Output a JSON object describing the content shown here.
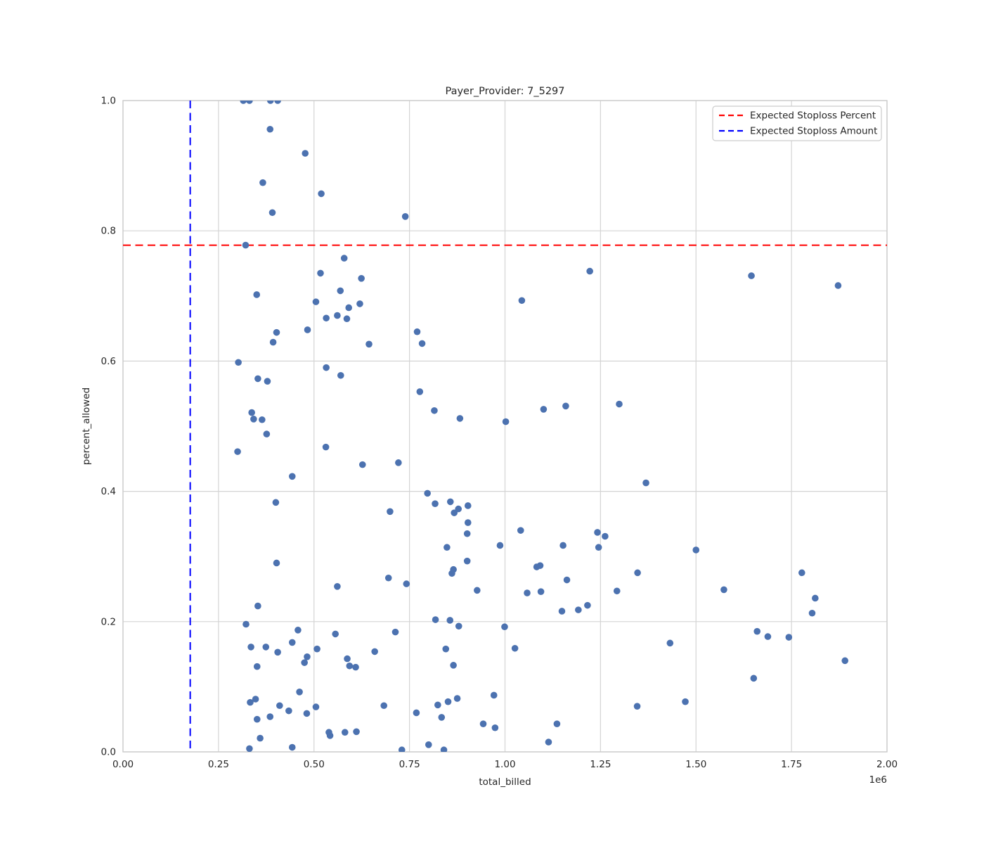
{
  "title": "Payer_Provider: 7_5297",
  "chart_data": {
    "type": "scatter",
    "title": "Payer_Provider: 7_5297",
    "xlabel": "total_billed",
    "ylabel": "percent_allowed",
    "x_offset_label": "1e6",
    "xlim": [
      0,
      2000000
    ],
    "ylim": [
      0.0,
      1.0
    ],
    "grid": true,
    "x_ticks": [
      {
        "value": 0,
        "label": "0.00"
      },
      {
        "value": 250000,
        "label": "0.25"
      },
      {
        "value": 500000,
        "label": "0.50"
      },
      {
        "value": 750000,
        "label": "0.75"
      },
      {
        "value": 1000000,
        "label": "1.00"
      },
      {
        "value": 1250000,
        "label": "1.25"
      },
      {
        "value": 1500000,
        "label": "1.50"
      },
      {
        "value": 1750000,
        "label": "1.75"
      },
      {
        "value": 2000000,
        "label": "2.00"
      }
    ],
    "y_ticks": [
      {
        "value": 0.0,
        "label": "0.0"
      },
      {
        "value": 0.2,
        "label": "0.2"
      },
      {
        "value": 0.4,
        "label": "0.4"
      },
      {
        "value": 0.6,
        "label": "0.6"
      },
      {
        "value": 0.8,
        "label": "0.8"
      },
      {
        "value": 1.0,
        "label": "1.0"
      }
    ],
    "reference_lines": [
      {
        "name": "Expected Stoploss Percent",
        "orientation": "horizontal",
        "value": 0.778,
        "color": "#ff0000",
        "style": "dashed"
      },
      {
        "name": "Expected Stoploss Amount",
        "orientation": "vertical",
        "value": 176000,
        "color": "#0000ff",
        "style": "dashed"
      }
    ],
    "legend": {
      "position": "upper right",
      "entries": [
        {
          "label": "Expected Stoploss Percent",
          "color": "#ff0000",
          "style": "dashed"
        },
        {
          "label": "Expected Stoploss Amount",
          "color": "#0000ff",
          "style": "dashed"
        }
      ]
    },
    "series": [
      {
        "name": "claims",
        "color": "#4C72B0",
        "points": [
          [
            315000,
            1.0
          ],
          [
            331000,
            1.0
          ],
          [
            386000,
            1.0
          ],
          [
            405000,
            1.0
          ],
          [
            385000,
            0.956
          ],
          [
            477000,
            0.919
          ],
          [
            366000,
            0.874
          ],
          [
            519000,
            0.857
          ],
          [
            391000,
            0.828
          ],
          [
            739000,
            0.822
          ],
          [
            321000,
            0.778
          ],
          [
            579000,
            0.758
          ],
          [
            1222000,
            0.738
          ],
          [
            517000,
            0.735
          ],
          [
            1645000,
            0.731
          ],
          [
            624000,
            0.727
          ],
          [
            1872000,
            0.716
          ],
          [
            569000,
            0.708
          ],
          [
            350000,
            0.702
          ],
          [
            505000,
            0.691
          ],
          [
            1044000,
            0.693
          ],
          [
            620000,
            0.688
          ],
          [
            591000,
            0.682
          ],
          [
            561000,
            0.67
          ],
          [
            532000,
            0.666
          ],
          [
            586000,
            0.665
          ],
          [
            483000,
            0.648
          ],
          [
            402000,
            0.644
          ],
          [
            770000,
            0.645
          ],
          [
            393000,
            0.629
          ],
          [
            644000,
            0.626
          ],
          [
            783000,
            0.627
          ],
          [
            302000,
            0.598
          ],
          [
            532000,
            0.59
          ],
          [
            570000,
            0.578
          ],
          [
            353000,
            0.573
          ],
          [
            378000,
            0.569
          ],
          [
            777000,
            0.553
          ],
          [
            1299000,
            0.534
          ],
          [
            1159000,
            0.531
          ],
          [
            1101000,
            0.526
          ],
          [
            815000,
            0.524
          ],
          [
            337000,
            0.521
          ],
          [
            882000,
            0.512
          ],
          [
            342000,
            0.511
          ],
          [
            364000,
            0.51
          ],
          [
            1002000,
            0.507
          ],
          [
            376000,
            0.488
          ],
          [
            531000,
            0.468
          ],
          [
            300000,
            0.461
          ],
          [
            721000,
            0.444
          ],
          [
            627000,
            0.441
          ],
          [
            443000,
            0.423
          ],
          [
            1369000,
            0.413
          ],
          [
            797000,
            0.397
          ],
          [
            400000,
            0.383
          ],
          [
            817000,
            0.381
          ],
          [
            857000,
            0.384
          ],
          [
            903000,
            0.378
          ],
          [
            878000,
            0.373
          ],
          [
            699000,
            0.369
          ],
          [
            867000,
            0.367
          ],
          [
            903000,
            0.352
          ],
          [
            901000,
            0.335
          ],
          [
            1041000,
            0.34
          ],
          [
            1242000,
            0.337
          ],
          [
            1262000,
            0.331
          ],
          [
            848000,
            0.314
          ],
          [
            987000,
            0.317
          ],
          [
            1152000,
            0.317
          ],
          [
            1245000,
            0.314
          ],
          [
            1500000,
            0.31
          ],
          [
            901000,
            0.293
          ],
          [
            402000,
            0.29
          ],
          [
            1083000,
            0.284
          ],
          [
            1092000,
            0.286
          ],
          [
            865000,
            0.28
          ],
          [
            861000,
            0.274
          ],
          [
            1347000,
            0.275
          ],
          [
            1777000,
            0.275
          ],
          [
            695000,
            0.267
          ],
          [
            742000,
            0.258
          ],
          [
            1162000,
            0.264
          ],
          [
            561000,
            0.254
          ],
          [
            1573000,
            0.249
          ],
          [
            927000,
            0.248
          ],
          [
            1058000,
            0.244
          ],
          [
            1094000,
            0.246
          ],
          [
            1293000,
            0.247
          ],
          [
            1812000,
            0.236
          ],
          [
            353000,
            0.224
          ],
          [
            1149000,
            0.216
          ],
          [
            1192000,
            0.218
          ],
          [
            1216000,
            0.225
          ],
          [
            1804000,
            0.213
          ],
          [
            818000,
            0.203
          ],
          [
            856000,
            0.202
          ],
          [
            322000,
            0.196
          ],
          [
            458000,
            0.187
          ],
          [
            879000,
            0.193
          ],
          [
            999000,
            0.192
          ],
          [
            556000,
            0.181
          ],
          [
            713000,
            0.184
          ],
          [
            1660000,
            0.185
          ],
          [
            1688000,
            0.177
          ],
          [
            1743000,
            0.176
          ],
          [
            443000,
            0.168
          ],
          [
            1432000,
            0.167
          ],
          [
            335000,
            0.161
          ],
          [
            374000,
            0.161
          ],
          [
            405000,
            0.153
          ],
          [
            508000,
            0.158
          ],
          [
            659000,
            0.154
          ],
          [
            845000,
            0.158
          ],
          [
            1026000,
            0.159
          ],
          [
            482000,
            0.146
          ],
          [
            475000,
            0.137
          ],
          [
            587000,
            0.143
          ],
          [
            593000,
            0.132
          ],
          [
            609000,
            0.13
          ],
          [
            351000,
            0.131
          ],
          [
            865000,
            0.133
          ],
          [
            1890000,
            0.14
          ],
          [
            1651000,
            0.113
          ],
          [
            462000,
            0.092
          ],
          [
            971000,
            0.087
          ],
          [
            333000,
            0.076
          ],
          [
            347000,
            0.081
          ],
          [
            683000,
            0.071
          ],
          [
            824000,
            0.072
          ],
          [
            851000,
            0.077
          ],
          [
            875000,
            0.082
          ],
          [
            410000,
            0.071
          ],
          [
            1346000,
            0.07
          ],
          [
            1472000,
            0.077
          ],
          [
            434000,
            0.063
          ],
          [
            505000,
            0.069
          ],
          [
            481000,
            0.059
          ],
          [
            768000,
            0.06
          ],
          [
            834000,
            0.053
          ],
          [
            351000,
            0.05
          ],
          [
            385000,
            0.054
          ],
          [
            943000,
            0.043
          ],
          [
            974000,
            0.037
          ],
          [
            1136000,
            0.043
          ],
          [
            539000,
            0.03
          ],
          [
            542000,
            0.025
          ],
          [
            581000,
            0.03
          ],
          [
            611000,
            0.031
          ],
          [
            1114000,
            0.015
          ],
          [
            359000,
            0.021
          ],
          [
            800000,
            0.011
          ],
          [
            730000,
            0.003
          ],
          [
            840000,
            0.003
          ],
          [
            331000,
            0.005
          ],
          [
            443000,
            0.007
          ]
        ]
      }
    ]
  },
  "colors": {
    "background": "#ffffff",
    "plot_background": "#ffffff",
    "grid": "#d4d4d4",
    "axes_border": "#cccccc",
    "point": "#4C72B0",
    "text": "#262626",
    "stoploss_percent": "#ff0000",
    "stoploss_amount": "#0000ff",
    "legend_border": "#cccccc"
  }
}
